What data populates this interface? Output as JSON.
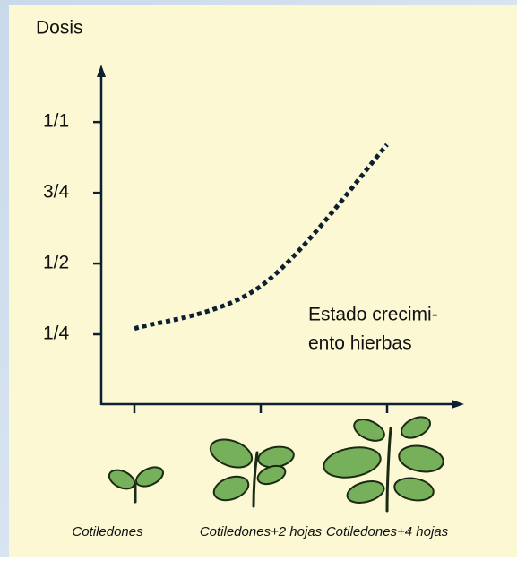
{
  "chart_data": {
    "type": "line",
    "y_label": "Dosis",
    "annotation": [
      "Estado crecimi-",
      "ento hierbas"
    ],
    "categories": [
      "Cotiledones",
      "Cotiledones+2 hojas",
      "Cotiledones+4 hojas"
    ],
    "series": [
      {
        "name": null,
        "color": "#0d1f33",
        "values": [
          0.27,
          0.42,
          0.92
        ]
      }
    ],
    "ylim": [
      0,
      1.2
    ],
    "yticks": [
      {
        "value": 0.25,
        "label": "1/4"
      },
      {
        "value": 0.5,
        "label": "1/2"
      },
      {
        "value": 0.75,
        "label": "3/4"
      },
      {
        "value": 1,
        "label": "1/1"
      }
    ],
    "line_style": "dotted"
  }
}
